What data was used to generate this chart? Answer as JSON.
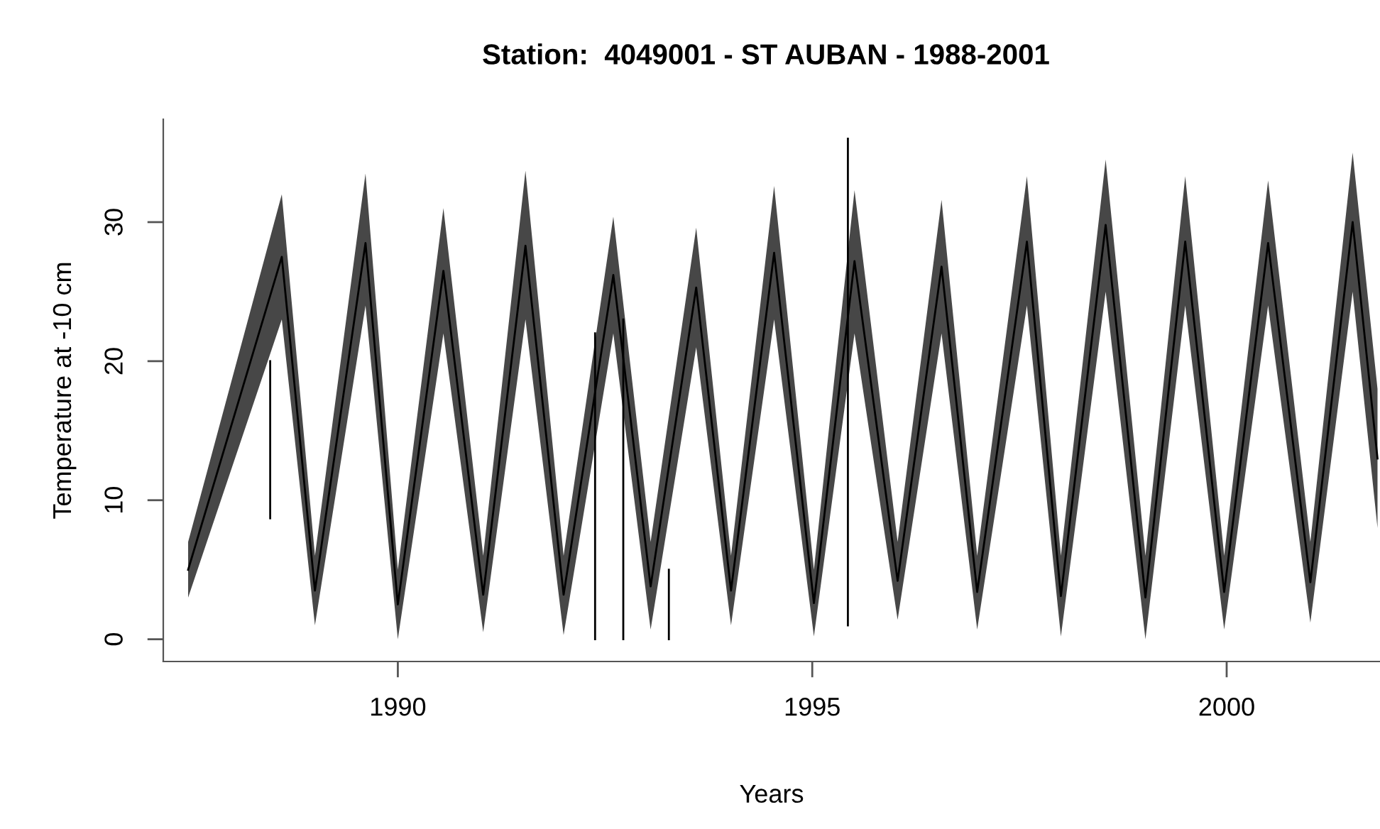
{
  "chart_data": {
    "type": "line",
    "title": "Station:  4049001 - ST AUBAN - 1988-2001",
    "xlabel": "Years",
    "ylabel": "Temperature at -10 cm",
    "xlim": [
      1987.17,
      2001.85
    ],
    "ylim": [
      -1.6,
      37.4
    ],
    "xticks": [
      1990,
      1995,
      2000
    ],
    "yticks": [
      0,
      10,
      20,
      30
    ],
    "series": [
      {
        "color": "#000000",
        "x": [
          1987.47,
          1988.6,
          1989.0,
          1989.61,
          1990.0,
          1990.55,
          1991.03,
          1991.54,
          1992.0,
          1992.6,
          1993.05,
          1993.6,
          1994.02,
          1994.54,
          1995.02,
          1995.51,
          1996.03,
          1996.56,
          1996.99,
          1997.59,
          1998.0,
          1998.54,
          1999.02,
          1999.5,
          1999.97,
          2000.5,
          2001.01,
          2001.52,
          2001.82
        ],
        "values": [
          5,
          27.5,
          3.5,
          28.5,
          2.5,
          26.5,
          3.2,
          28.3,
          3.2,
          26.2,
          3.8,
          25.3,
          3.5,
          27.8,
          2.6,
          27.2,
          4.2,
          26.8,
          3.4,
          28.6,
          3.1,
          29.8,
          3,
          28.6,
          3.4,
          28.5,
          4.1,
          30,
          13
        ],
        "lower": [
          3,
          23,
          1,
          24,
          0,
          22,
          0.5,
          23,
          0.3,
          22,
          0.7,
          21,
          1,
          23,
          0.2,
          22,
          1.4,
          22,
          0.7,
          24,
          0.2,
          25,
          0,
          24,
          0.7,
          24,
          1.2,
          25,
          8
        ],
        "upper": [
          7,
          32,
          6,
          33.5,
          5,
          31,
          6,
          33.7,
          6,
          30.4,
          7,
          29.6,
          6,
          32.6,
          5,
          32.3,
          7,
          31.6,
          6,
          33.3,
          6,
          34.5,
          6,
          33.3,
          6,
          33,
          7,
          35,
          18
        ]
      },
      {
        "color": "#000000",
        "x": [
          1988.46,
          1988.46
        ],
        "values": [
          8.7,
          20
        ]
      },
      {
        "color": "#000000",
        "x": [
          1992.38,
          1992.38
        ],
        "values": [
          0,
          22
        ]
      },
      {
        "color": "#000000",
        "x": [
          1992.72,
          1992.72
        ],
        "values": [
          0,
          23
        ]
      },
      {
        "color": "#000000",
        "x": [
          1993.27,
          1993.27
        ],
        "values": [
          0,
          5
        ]
      },
      {
        "color": "#000000",
        "x": [
          1995.43,
          1995.43
        ],
        "values": [
          1,
          36
        ]
      }
    ]
  }
}
